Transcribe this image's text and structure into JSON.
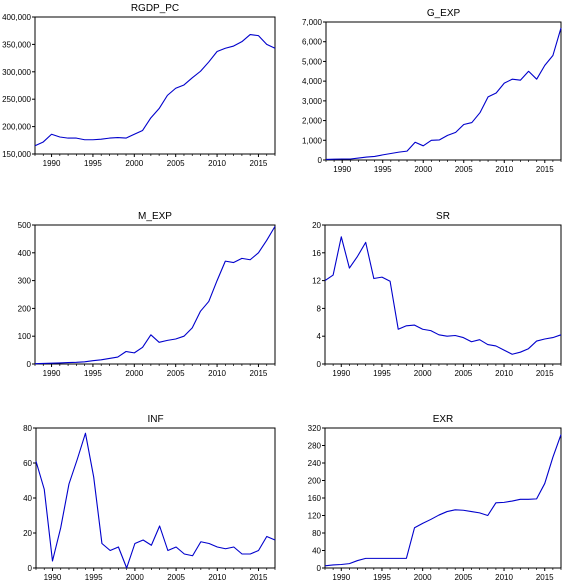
{
  "chart_data": [
    {
      "type": "line",
      "title": "RGDP_PC",
      "xlabel": "",
      "ylabel": "",
      "xlim": [
        1988,
        2017
      ],
      "ylim": [
        150000,
        400000
      ],
      "xticks": [
        1990,
        1995,
        2000,
        2005,
        2010,
        2015
      ],
      "yticks": [
        150000,
        200000,
        250000,
        300000,
        350000,
        400000
      ],
      "ytick_labels": [
        "150,000",
        "200,000",
        "250,000",
        "300,000",
        "350,000",
        "400,000"
      ],
      "series": [
        {
          "color": "#0000cc",
          "x": [
            1988,
            1989,
            1990,
            1991,
            1992,
            1993,
            1994,
            1995,
            1996,
            1997,
            1998,
            1999,
            2000,
            2001,
            2002,
            2003,
            2004,
            2005,
            2006,
            2007,
            2008,
            2009,
            2010,
            2011,
            2012,
            2013,
            2014,
            2015,
            2016,
            2017
          ],
          "values": [
            165000,
            172000,
            186000,
            181000,
            179000,
            179000,
            176000,
            176000,
            177000,
            179000,
            180000,
            179000,
            186000,
            193000,
            216000,
            233000,
            257000,
            270000,
            276000,
            289000,
            301000,
            318000,
            337000,
            343000,
            347000,
            355000,
            368000,
            366000,
            350000,
            343000
          ]
        }
      ]
    },
    {
      "type": "line",
      "title": "G_EXP",
      "xlabel": "",
      "ylabel": "",
      "xlim": [
        1988,
        2017
      ],
      "ylim": [
        0,
        7000
      ],
      "xticks": [
        1990,
        1995,
        2000,
        2005,
        2010,
        2015
      ],
      "yticks": [
        0,
        1000,
        2000,
        3000,
        4000,
        5000,
        6000,
        7000
      ],
      "ytick_labels": [
        "0",
        "1,000",
        "2,000",
        "3,000",
        "4,000",
        "5,000",
        "6,000",
        "7,000"
      ],
      "series": [
        {
          "color": "#0000cc",
          "x": [
            1988,
            1989,
            1990,
            1991,
            1992,
            1993,
            1994,
            1995,
            1996,
            1997,
            1998,
            1999,
            2000,
            2001,
            2002,
            2003,
            2004,
            2005,
            2006,
            2007,
            2008,
            2009,
            2010,
            2011,
            2012,
            2013,
            2014,
            2015,
            2016,
            2017
          ],
          "values": [
            30,
            40,
            50,
            50,
            100,
            150,
            180,
            260,
            330,
            400,
            450,
            900,
            720,
            1000,
            1020,
            1250,
            1400,
            1800,
            1900,
            2400,
            3200,
            3400,
            3900,
            4100,
            4050,
            4500,
            4100,
            4800,
            5300,
            6700
          ]
        }
      ]
    },
    {
      "type": "line",
      "title": "M_EXP",
      "xlabel": "",
      "ylabel": "",
      "xlim": [
        1988,
        2017
      ],
      "ylim": [
        0,
        500
      ],
      "xticks": [
        1990,
        1995,
        2000,
        2005,
        2010,
        2015
      ],
      "yticks": [
        0,
        100,
        200,
        300,
        400,
        500
      ],
      "ytick_labels": [
        "0",
        "100",
        "200",
        "300",
        "400",
        "500"
      ],
      "series": [
        {
          "color": "#0000cc",
          "x": [
            1988,
            1989,
            1990,
            1991,
            1992,
            1993,
            1994,
            1995,
            1996,
            1997,
            1998,
            1999,
            2000,
            2001,
            2002,
            2003,
            2004,
            2005,
            2006,
            2007,
            2008,
            2009,
            2010,
            2011,
            2012,
            2013,
            2014,
            2015,
            2016,
            2017
          ],
          "values": [
            1,
            2,
            3,
            4,
            5,
            6,
            8,
            12,
            15,
            20,
            25,
            45,
            40,
            60,
            105,
            78,
            85,
            90,
            100,
            130,
            190,
            225,
            300,
            370,
            365,
            380,
            375,
            400,
            445,
            495
          ]
        }
      ]
    },
    {
      "type": "line",
      "title": "SR",
      "xlabel": "",
      "ylabel": "",
      "xlim": [
        1988,
        2017
      ],
      "ylim": [
        0,
        20
      ],
      "xticks": [
        1990,
        1995,
        2000,
        2005,
        2010,
        2015
      ],
      "yticks": [
        0,
        4,
        8,
        12,
        16,
        20
      ],
      "ytick_labels": [
        "0",
        "4",
        "8",
        "12",
        "16",
        "20"
      ],
      "series": [
        {
          "color": "#0000cc",
          "x": [
            1988,
            1989,
            1990,
            1991,
            1992,
            1993,
            1994,
            1995,
            1996,
            1997,
            1998,
            1999,
            2000,
            2001,
            2002,
            2003,
            2004,
            2005,
            2006,
            2007,
            2008,
            2009,
            2010,
            2011,
            2012,
            2013,
            2014,
            2015,
            2016,
            2017
          ],
          "values": [
            12.0,
            12.8,
            18.3,
            13.8,
            15.5,
            17.5,
            12.3,
            12.5,
            11.9,
            5.0,
            5.5,
            5.6,
            5.0,
            4.8,
            4.2,
            4.0,
            4.1,
            3.8,
            3.2,
            3.5,
            2.8,
            2.6,
            2.0,
            1.4,
            1.7,
            2.2,
            3.3,
            3.6,
            3.8,
            4.2
          ]
        }
      ]
    },
    {
      "type": "line",
      "title": "INF",
      "xlabel": "",
      "ylabel": "",
      "xlim": [
        1988,
        2017
      ],
      "ylim": [
        0,
        80
      ],
      "xticks": [
        1990,
        1995,
        2000,
        2005,
        2010,
        2015
      ],
      "yticks": [
        0,
        20,
        40,
        60,
        80
      ],
      "ytick_labels": [
        "0",
        "20",
        "40",
        "60",
        "80"
      ],
      "series": [
        {
          "color": "#0000cc",
          "x": [
            1988,
            1989,
            1990,
            1991,
            1992,
            1993,
            1994,
            1995,
            1996,
            1997,
            1998,
            1999,
            2000,
            2001,
            2002,
            2003,
            2004,
            2005,
            2006,
            2007,
            2008,
            2009,
            2010,
            2011,
            2012,
            2013,
            2014,
            2015,
            2016,
            2017
          ],
          "values": [
            61,
            45,
            4,
            23,
            48,
            62,
            77,
            52,
            14,
            10,
            12,
            0,
            14,
            16,
            13,
            24,
            10,
            12,
            8,
            7,
            15,
            14,
            12,
            11,
            12,
            8,
            8,
            10,
            18,
            16
          ]
        }
      ]
    },
    {
      "type": "line",
      "title": "EXR",
      "xlabel": "",
      "ylabel": "",
      "xlim": [
        1988,
        2017
      ],
      "ylim": [
        0,
        320
      ],
      "xticks": [
        1990,
        1995,
        2000,
        2005,
        2010,
        2015
      ],
      "yticks": [
        0,
        40,
        80,
        120,
        160,
        200,
        240,
        280,
        320
      ],
      "ytick_labels": [
        "0",
        "40",
        "80",
        "120",
        "160",
        "200",
        "240",
        "280",
        "320"
      ],
      "series": [
        {
          "color": "#0000cc",
          "x": [
            1988,
            1989,
            1990,
            1991,
            1992,
            1993,
            1994,
            1995,
            1996,
            1997,
            1998,
            1999,
            2000,
            2001,
            2002,
            2003,
            2004,
            2005,
            2006,
            2007,
            2008,
            2009,
            2010,
            2011,
            2012,
            2013,
            2014,
            2015,
            2016,
            2017
          ],
          "values": [
            5,
            7,
            8,
            10,
            17,
            22,
            22,
            22,
            22,
            22,
            22,
            92,
            102,
            111,
            121,
            129,
            133,
            132,
            129,
            126,
            120,
            149,
            150,
            153,
            157,
            157,
            158,
            193,
            253,
            305
          ]
        }
      ]
    }
  ]
}
